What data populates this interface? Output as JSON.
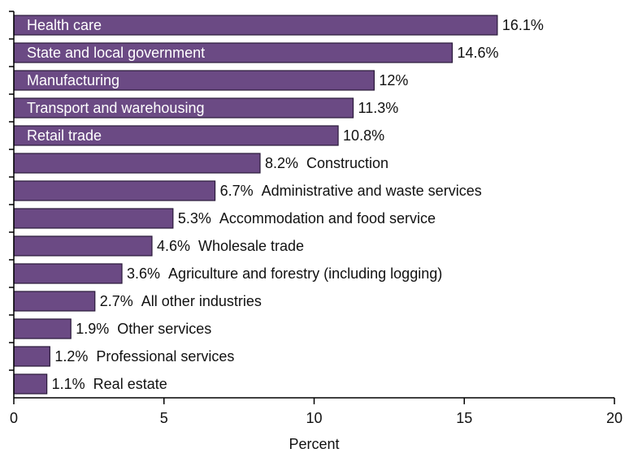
{
  "chart_data": {
    "type": "bar",
    "orientation": "horizontal",
    "categories": [
      "Health care",
      "State and local government",
      "Manufacturing",
      "Transport and warehousing",
      "Retail trade",
      "Construction",
      "Administrative and waste services",
      "Accommodation and food service",
      "Wholesale trade",
      "Agriculture and forestry (including logging)",
      "All other industries",
      "Other services",
      "Professional services",
      "Real estate"
    ],
    "values": [
      16.1,
      14.6,
      12,
      11.3,
      10.8,
      8.2,
      6.7,
      5.3,
      4.6,
      3.6,
      2.7,
      1.9,
      1.2,
      1.1
    ],
    "value_labels": [
      "16.1%",
      "14.6%",
      "12%",
      "11.3%",
      "10.8%",
      "8.2%",
      "6.7%",
      "5.3%",
      "4.6%",
      "3.6%",
      "2.7%",
      "1.9%",
      "1.2%",
      "1.1%"
    ],
    "xlabel": "Percent",
    "ylabel": "",
    "xlim": [
      0,
      20
    ],
    "xticks": [
      0,
      5,
      10,
      15,
      20
    ],
    "bar_color": "#6b4a84",
    "grid": false,
    "legend": "none"
  }
}
